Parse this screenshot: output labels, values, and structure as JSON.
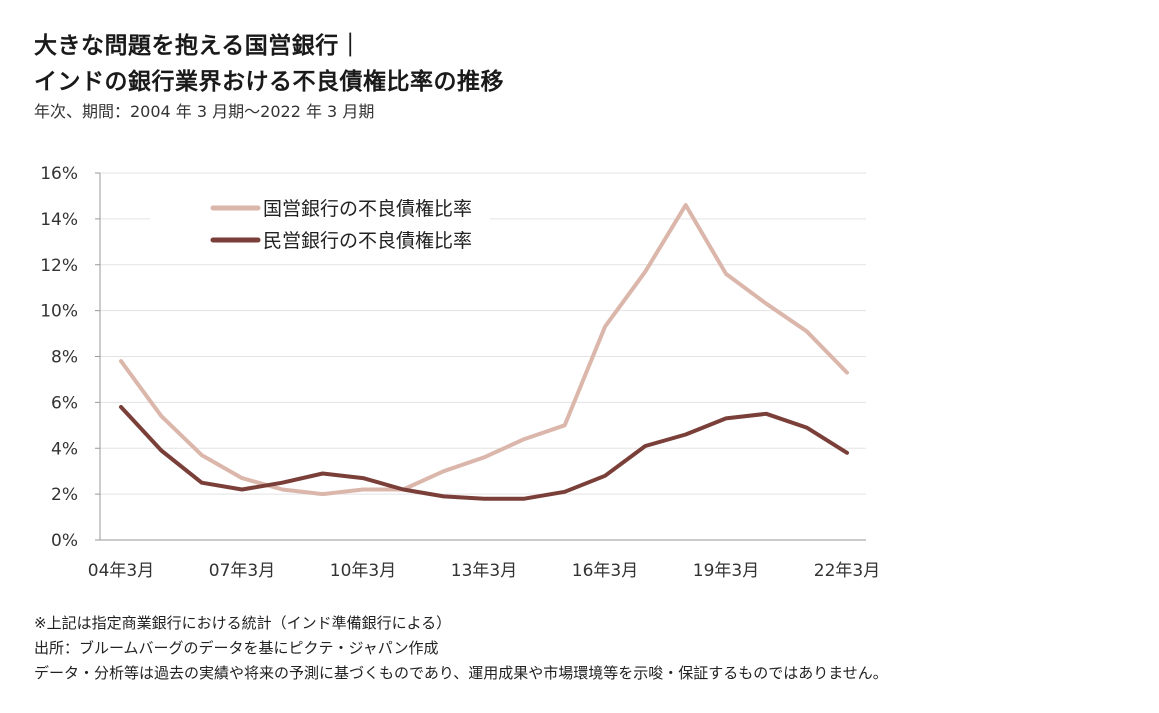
{
  "header": {
    "title_line1": "大きな問題を抱える国営銀行｜",
    "title_line2": "インドの銀行業界おける不良債権比率の推移",
    "subtitle": "年次、期間：2004 年 3 月期～2022 年 3 月期"
  },
  "chart_data": {
    "type": "line",
    "x": [
      "04年3月",
      "05年3月",
      "06年3月",
      "07年3月",
      "08年3月",
      "09年3月",
      "10年3月",
      "11年3月",
      "12年3月",
      "13年3月",
      "14年3月",
      "15年3月",
      "16年3月",
      "17年3月",
      "18年3月",
      "19年3月",
      "20年3月",
      "21年3月",
      "22年3月"
    ],
    "xtick_labels": [
      "04年3月",
      "07年3月",
      "10年3月",
      "13年3月",
      "16年3月",
      "19年3月",
      "22年3月"
    ],
    "ytick_labels": [
      "0%",
      "2%",
      "4%",
      "6%",
      "8%",
      "10%",
      "12%",
      "14%",
      "16%"
    ],
    "ylim": [
      0,
      16
    ],
    "grid": true,
    "legend_position": "top-left",
    "series": [
      {
        "name": "国営銀行の不良債権比率",
        "color": "#dbb6ab",
        "values": [
          7.8,
          5.4,
          3.7,
          2.7,
          2.2,
          2.0,
          2.2,
          2.2,
          3.0,
          3.6,
          4.4,
          5.0,
          9.3,
          11.7,
          14.6,
          11.6,
          10.3,
          9.1,
          7.3
        ]
      },
      {
        "name": "民営銀行の不良債権比率",
        "color": "#7a3f38",
        "values": [
          5.8,
          3.9,
          2.5,
          2.2,
          2.5,
          2.9,
          2.7,
          2.2,
          1.9,
          1.8,
          1.8,
          2.1,
          2.8,
          4.1,
          4.6,
          5.3,
          5.5,
          4.9,
          3.8
        ]
      }
    ]
  },
  "footer": {
    "note1": "※上記は指定商業銀行における統計（インド準備銀行による）",
    "note2": "出所：ブルームバーグのデータを基にピクテ・ジャパン作成",
    "note3": "データ・分析等は過去の実績や将来の予測に基づくものであり、運用成果や市場環境等を示唆・保証するものではありません。"
  }
}
